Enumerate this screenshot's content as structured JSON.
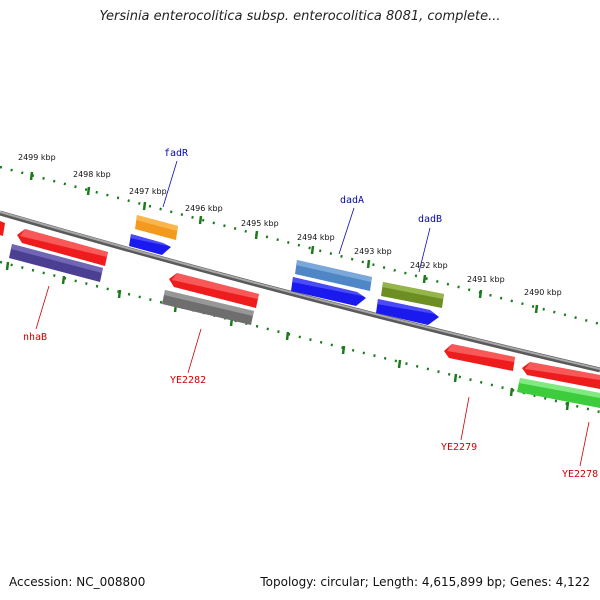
{
  "title": "Yersinia enterocolitica subsp. enterocolitica 8081, complete...",
  "footer": {
    "accession": "Accession: NC_008800",
    "summary": "Topology: circular; Length: 4,615,899 bp; Genes: 4,122"
  },
  "colors": {
    "scale_track": "#1b7a1b",
    "backbone": "#8a8a8a",
    "forward_label": "#0a0aa8",
    "reverse_label": "#d40000"
  },
  "scale_labels": [
    "2499 kbp",
    "2498 kbp",
    "2497 kbp",
    "2496 kbp",
    "2495 kbp",
    "2494 kbp",
    "2493 kbp",
    "2492 kbp",
    "2491 kbp",
    "2490 kbp"
  ],
  "genes": [
    {
      "label": "fadR",
      "strand": "forward",
      "color": "#f39a1e"
    },
    {
      "label": "dadA",
      "strand": "forward",
      "color": "#4f86c6"
    },
    {
      "label": "dadB",
      "strand": "forward",
      "color": "#6d8e23"
    },
    {
      "label": "nhaB",
      "strand": "reverse",
      "color": "#4a3f92"
    },
    {
      "label": "YE2282",
      "strand": "reverse",
      "color": "#6e6e6e"
    },
    {
      "label": "YE2279",
      "strand": "reverse",
      "color": "#ee1c1c"
    },
    {
      "label": "YE2278",
      "strand": "reverse",
      "color": "#3ccc3c"
    }
  ]
}
